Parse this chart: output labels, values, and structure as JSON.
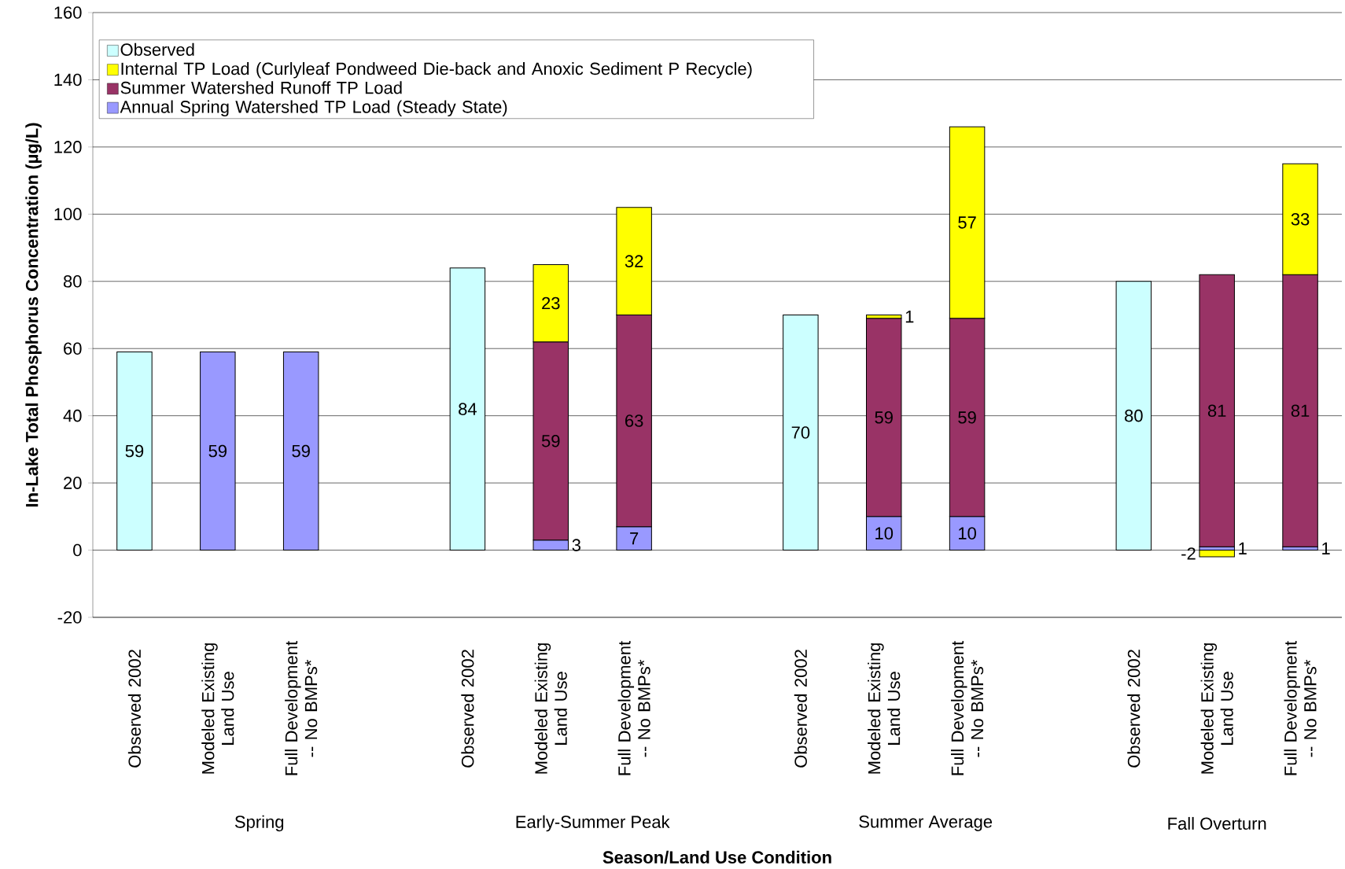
{
  "chart_data": {
    "type": "bar",
    "stacked": true,
    "xlabel": "Season/Land Use Condition",
    "ylabel": "In-Lake Total Phosphorus Concentration (µg/L)",
    "categories": [
      "Observed 2002",
      "Modeled Existing Land Use",
      "Full Development -- No BMPs*",
      null,
      "Observed 2002",
      "Modeled Existing Land Use",
      "Full Development -- No BMPs*",
      null,
      "Observed 2002",
      "Modeled Existing Land Use",
      "Full Development -- No BMPs*",
      null,
      "Observed 2002",
      "Modeled Existing Land Use",
      "Full Development -- No BMPs*"
    ],
    "series": [
      {
        "name": "Observed",
        "color": "#ccffff",
        "values": [
          59,
          null,
          null,
          null,
          84,
          null,
          null,
          null,
          70,
          null,
          null,
          null,
          80,
          null,
          null
        ]
      },
      {
        "name": "Annual Spring Watershed TP Load (Steady State)",
        "color": "#9999ff",
        "values": [
          null,
          59,
          59,
          null,
          null,
          3,
          7,
          null,
          null,
          10,
          10,
          null,
          null,
          1,
          1
        ]
      },
      {
        "name": "Summer Watershed Runoff TP Load",
        "color": "#993366",
        "values": [
          null,
          null,
          null,
          null,
          null,
          59,
          63,
          null,
          null,
          59,
          59,
          null,
          null,
          81,
          81
        ]
      },
      {
        "name": "Internal TP Load (Curlyleaf Pondweed Die-back and Anoxic Sediment P Recycle)",
        "color": "#ffff00",
        "values": [
          null,
          null,
          null,
          null,
          null,
          23,
          32,
          null,
          null,
          1,
          57,
          null,
          null,
          -2,
          33
        ]
      }
    ],
    "ylim": [
      -20,
      160
    ],
    "yticks": [
      -20,
      0,
      20,
      40,
      60,
      80,
      100,
      120,
      140,
      160
    ],
    "grid": "y",
    "legend": "top left",
    "data_labels": true,
    "annotations": [
      "Spring",
      "Early-Summer Peak",
      "Summer Average",
      "Fall Overturn"
    ]
  }
}
